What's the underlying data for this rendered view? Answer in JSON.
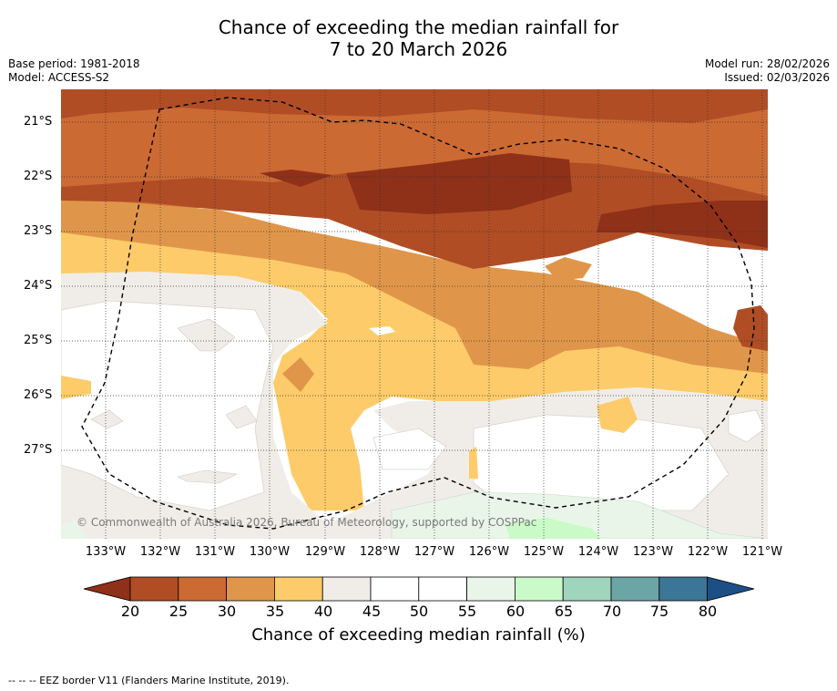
{
  "title_line1": "Chance of exceeding the median rainfall for",
  "title_line2": "7 to 20 March 2026",
  "base_period": "Base period: 1981-2018",
  "model": "Model: ACCESS-S2",
  "model_run": "Model run: 28/02/2026",
  "issued": "Issued: 02/03/2026",
  "latitudes": [
    "21°S",
    "22°S",
    "23°S",
    "24°S",
    "25°S",
    "26°S",
    "27°S"
  ],
  "longitudes": [
    "133°W",
    "132°W",
    "131°W",
    "130°W",
    "129°W",
    "128°W",
    "127°W",
    "126°W",
    "125°W",
    "124°W",
    "123°W",
    "122°W",
    "121°W"
  ],
  "copyright": "© Commonwealth of Australia 2026, Bureau of Meteorology, supported by COSPPac",
  "colorbar": {
    "ticks": [
      "20",
      "25",
      "30",
      "35",
      "40",
      "45",
      "50",
      "55",
      "60",
      "65",
      "70",
      "75",
      "80"
    ],
    "colors": [
      "#8f3019",
      "#b04d25",
      "#cc6a33",
      "#e0964a",
      "#fdcb6a",
      "#f0ede8",
      "#ffffff",
      "#ffffff",
      "#e8f5e8",
      "#c9fac8",
      "#9fd4bd",
      "#6ca5a6",
      "#3b7697",
      "#1c4f86"
    ],
    "label": "Chance of exceeding median rainfall (%)"
  },
  "footer": "--  --  -- EEZ border V11 (Flanders Marine Institute, 2019)."
}
